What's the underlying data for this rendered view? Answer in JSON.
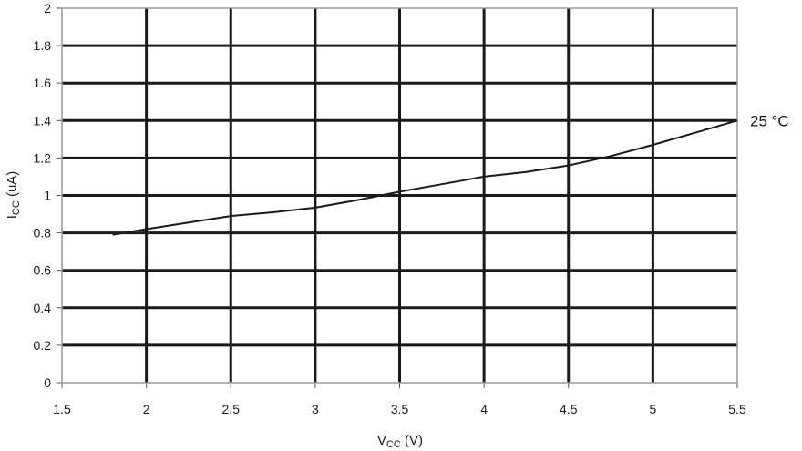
{
  "chart_data": {
    "type": "line",
    "title": "",
    "xlabel": {
      "main": "V",
      "sub": "CC",
      "unit": " (V)"
    },
    "ylabel": {
      "main": "I",
      "sub": "CC",
      "unit": " (uA)"
    },
    "xlim": [
      1.5,
      5.5
    ],
    "ylim": [
      0,
      2
    ],
    "x_ticks": [
      "1.5",
      "2",
      "2.5",
      "3",
      "3.5",
      "4",
      "4.5",
      "5",
      "5.5"
    ],
    "y_ticks": [
      "0",
      "0.2",
      "0.4",
      "0.6",
      "0.8",
      "1",
      "1.2",
      "1.4",
      "1.6",
      "1.8",
      "2"
    ],
    "grid": true,
    "series": [
      {
        "name": "25 °C",
        "x": [
          1.8,
          2.0,
          2.25,
          2.5,
          2.75,
          3.0,
          3.25,
          3.5,
          3.75,
          4.0,
          4.25,
          4.5,
          4.75,
          5.0,
          5.25,
          5.5
        ],
        "y": [
          0.79,
          0.82,
          0.855,
          0.89,
          0.91,
          0.935,
          0.975,
          1.02,
          1.06,
          1.1,
          1.125,
          1.16,
          1.21,
          1.27,
          1.335,
          1.4
        ]
      }
    ]
  },
  "colors": {
    "grid": "#1a1a1a",
    "line": "#1a1a1a",
    "frame": "#9a9a9a"
  }
}
